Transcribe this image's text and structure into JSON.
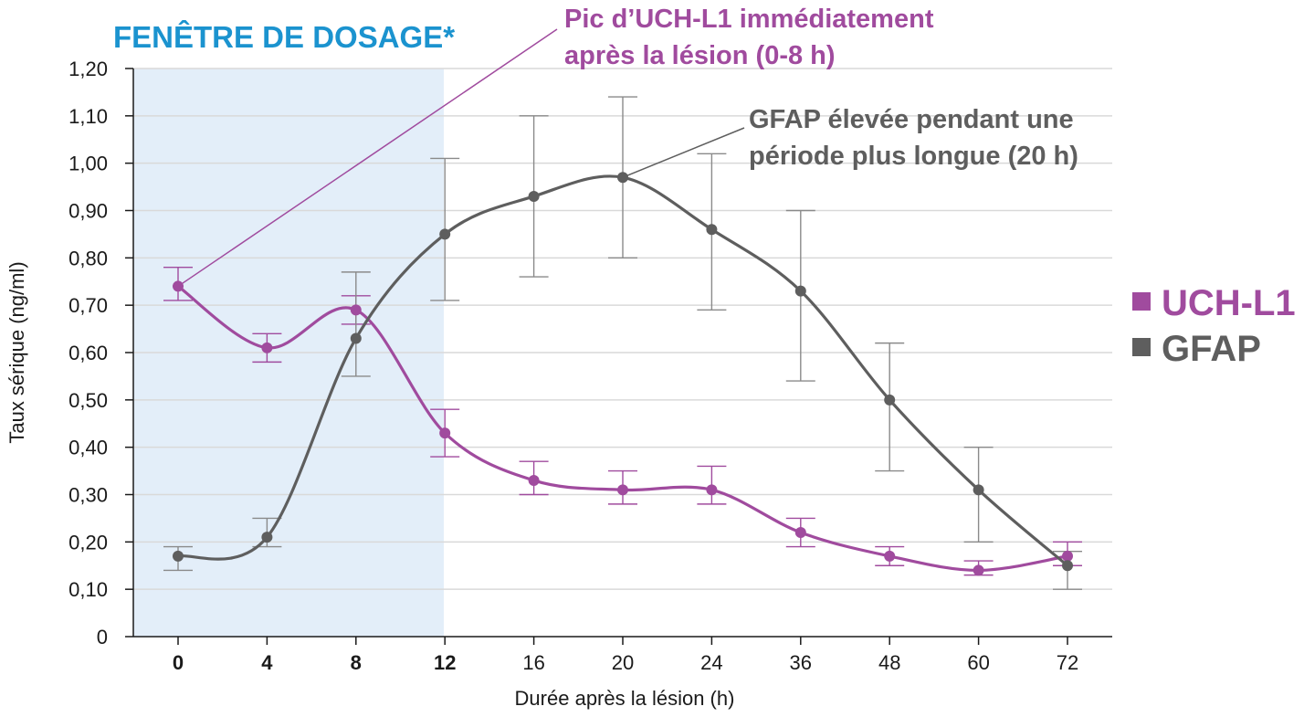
{
  "chart_data": {
    "type": "line",
    "window_label": "FENÊTRE DE DOSAGE*",
    "xlabel": "Durée après la lésion (h)",
    "ylabel": "Taux sérique (ng/ml)",
    "categories": [
      "0",
      "4",
      "8",
      "12",
      "16",
      "20",
      "24",
      "36",
      "48",
      "60",
      "72"
    ],
    "highlighted_categories": [
      "0",
      "4",
      "8",
      "12"
    ],
    "y_ticks": [
      "0",
      "0,10",
      "0,20",
      "0,30",
      "0,40",
      "0,50",
      "0,60",
      "0,70",
      "0,80",
      "0,90",
      "1,00",
      "1,10",
      "1,20"
    ],
    "ylim": [
      0,
      1.2
    ],
    "grid": true,
    "legend_position": "right",
    "series": [
      {
        "name": "UCH-L1",
        "color": "#a04b9e",
        "values": [
          0.74,
          0.61,
          0.69,
          0.43,
          0.33,
          0.31,
          0.31,
          0.22,
          0.17,
          0.14,
          0.17
        ],
        "error_low": [
          0.71,
          0.58,
          0.66,
          0.38,
          0.3,
          0.28,
          0.28,
          0.19,
          0.15,
          0.13,
          0.15
        ],
        "error_high": [
          0.78,
          0.64,
          0.72,
          0.48,
          0.37,
          0.35,
          0.36,
          0.25,
          0.19,
          0.16,
          0.2
        ]
      },
      {
        "name": "GFAP",
        "color": "#5e5e5e",
        "values": [
          0.17,
          0.21,
          0.63,
          0.85,
          0.93,
          0.97,
          0.86,
          0.73,
          0.5,
          0.31,
          0.15
        ],
        "error_low": [
          0.14,
          0.19,
          0.55,
          0.71,
          0.76,
          0.8,
          0.69,
          0.54,
          0.35,
          0.2,
          0.1
        ],
        "error_high": [
          0.19,
          0.25,
          0.77,
          1.01,
          1.1,
          1.14,
          1.02,
          0.9,
          0.62,
          0.4,
          0.18
        ]
      }
    ],
    "annotations": [
      {
        "series": "UCH-L1",
        "category": "0",
        "lines": [
          "Pic d’UCH-L1 immédiatement",
          "après la lésion (0-8 h)"
        ]
      },
      {
        "series": "GFAP",
        "category": "20",
        "lines": [
          "GFAP élevée pendant une",
          "période plus longue (20 h)"
        ]
      }
    ],
    "colors": {
      "window_fill": "#e3eef9",
      "window_text": "#1b93cf",
      "highlight_tick": "#1b93cf",
      "grid": "#d9d9d9",
      "axis": "#1a1a1a",
      "error_bar": "#8a8a8a"
    }
  }
}
